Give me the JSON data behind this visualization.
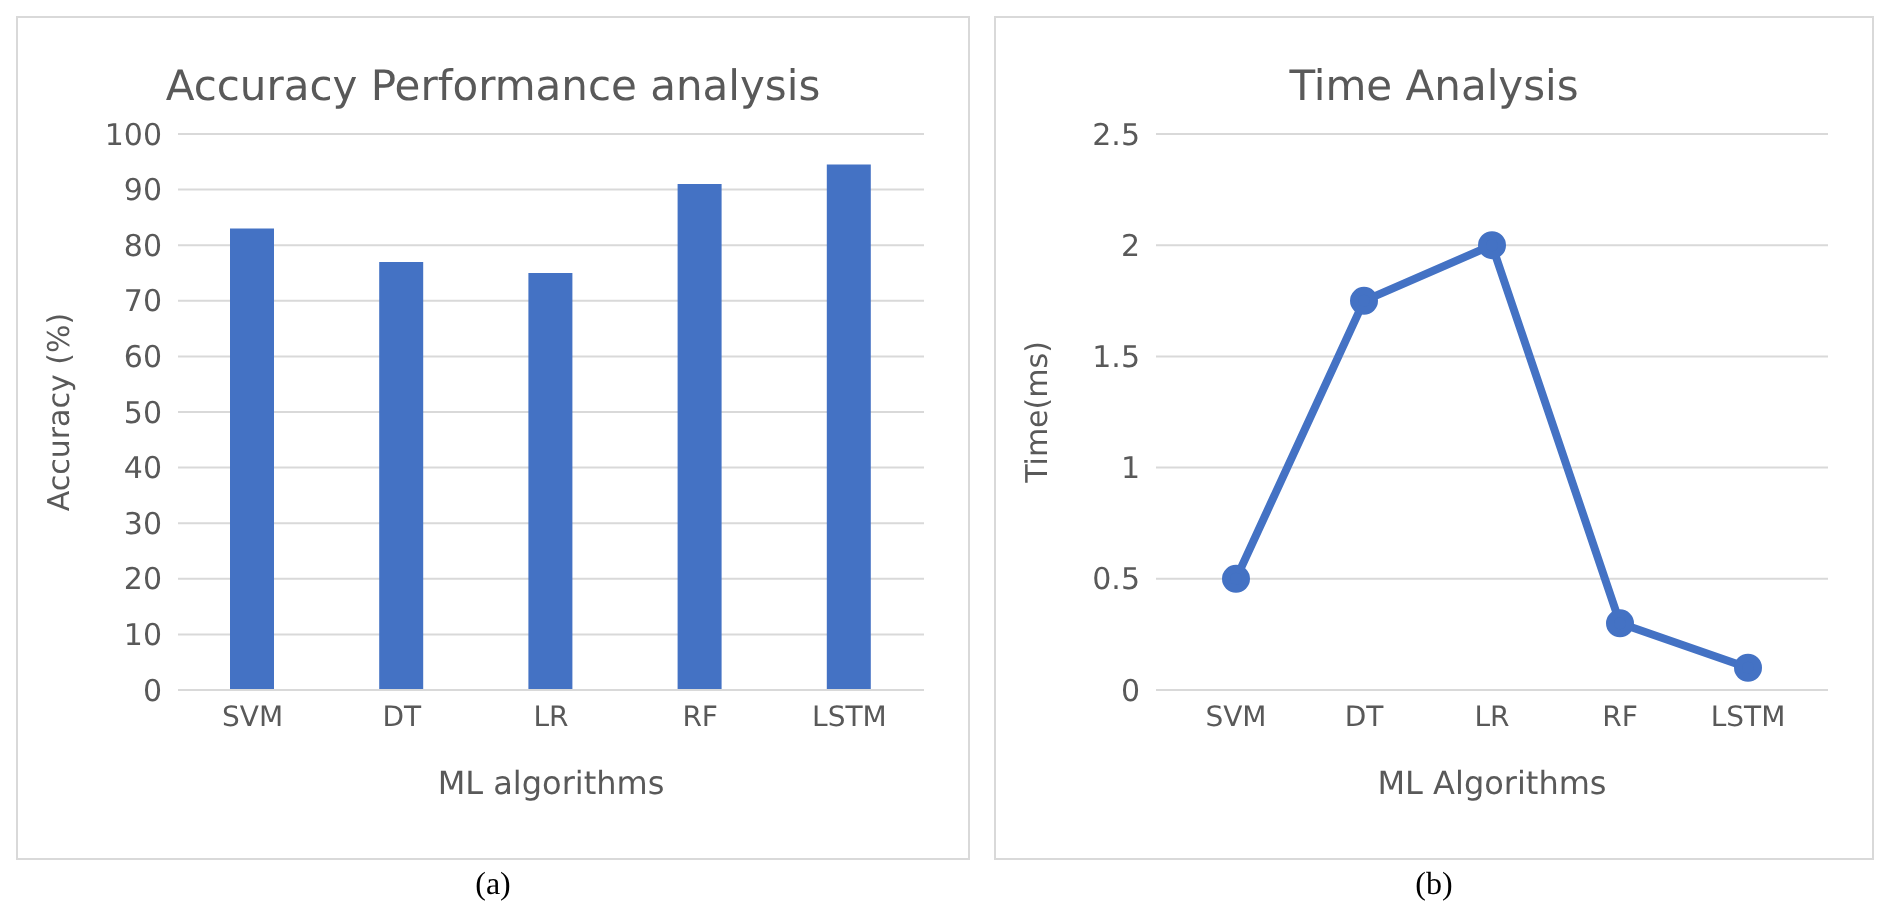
{
  "chart_data": [
    {
      "type": "bar",
      "title": "Accuracy Performance analysis",
      "xlabel": "ML algorithms",
      "ylabel": "Accuracy (%)",
      "categories": [
        "SVM",
        "DT",
        "LR",
        "RF",
        "LSTM"
      ],
      "values": [
        83,
        77,
        75,
        91,
        94.5
      ],
      "color": "#4472c4",
      "ylim": [
        0,
        100
      ],
      "yticks": [
        0,
        10,
        20,
        30,
        40,
        50,
        60,
        70,
        80,
        90,
        100
      ],
      "grid": "y",
      "annotations": [
        "(a)"
      ]
    },
    {
      "type": "line",
      "title": "Time Analysis",
      "xlabel": "ML Algorithms",
      "ylabel": "Time(ms)",
      "categories": [
        "SVM",
        "DT",
        "LR",
        "RF",
        "LSTM"
      ],
      "values": [
        0.5,
        1.75,
        2,
        0.3,
        0.1
      ],
      "color": "#4472c4",
      "ylim": [
        0,
        2.5
      ],
      "yticks": [
        0,
        0.5,
        1,
        1.5,
        2,
        2.5
      ],
      "grid": "y",
      "marker": "circle",
      "annotations": [
        "(b)"
      ]
    }
  ]
}
